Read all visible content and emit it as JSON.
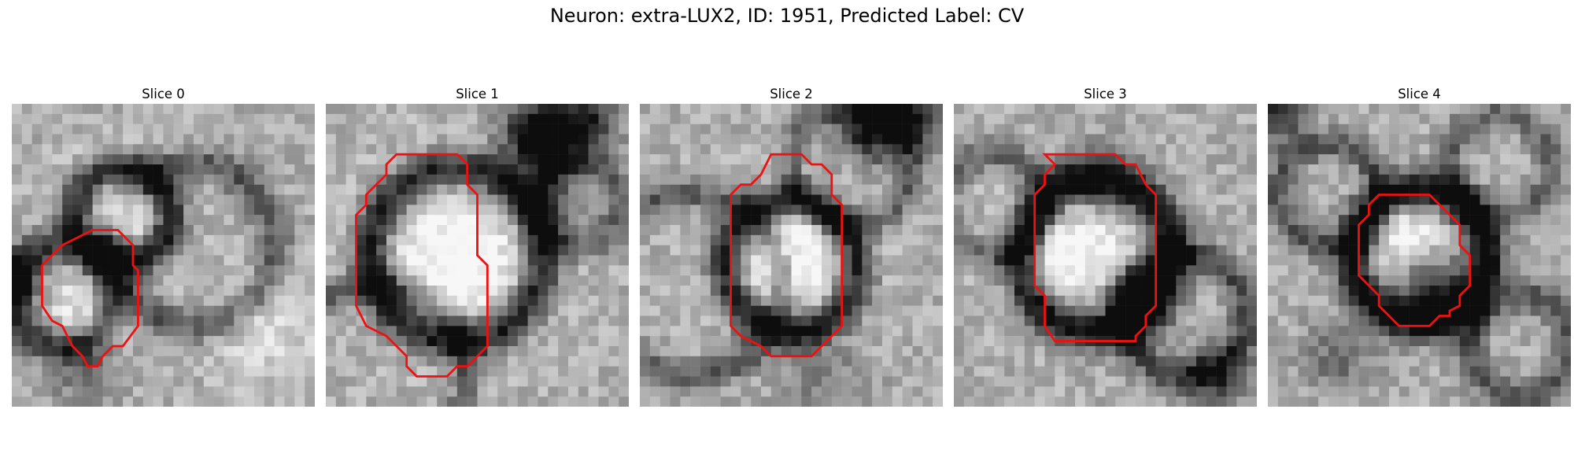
{
  "figure": {
    "title": "Neuron: extra-LUX2, ID: 1951, Predicted Label: CV",
    "outline_color": "#ee1111",
    "colormap": "gray"
  },
  "panels": [
    {
      "title": "Slice 0"
    },
    {
      "title": "Slice 1"
    },
    {
      "title": "Slice 2"
    },
    {
      "title": "Slice 3"
    },
    {
      "title": "Slice 4"
    }
  ]
}
